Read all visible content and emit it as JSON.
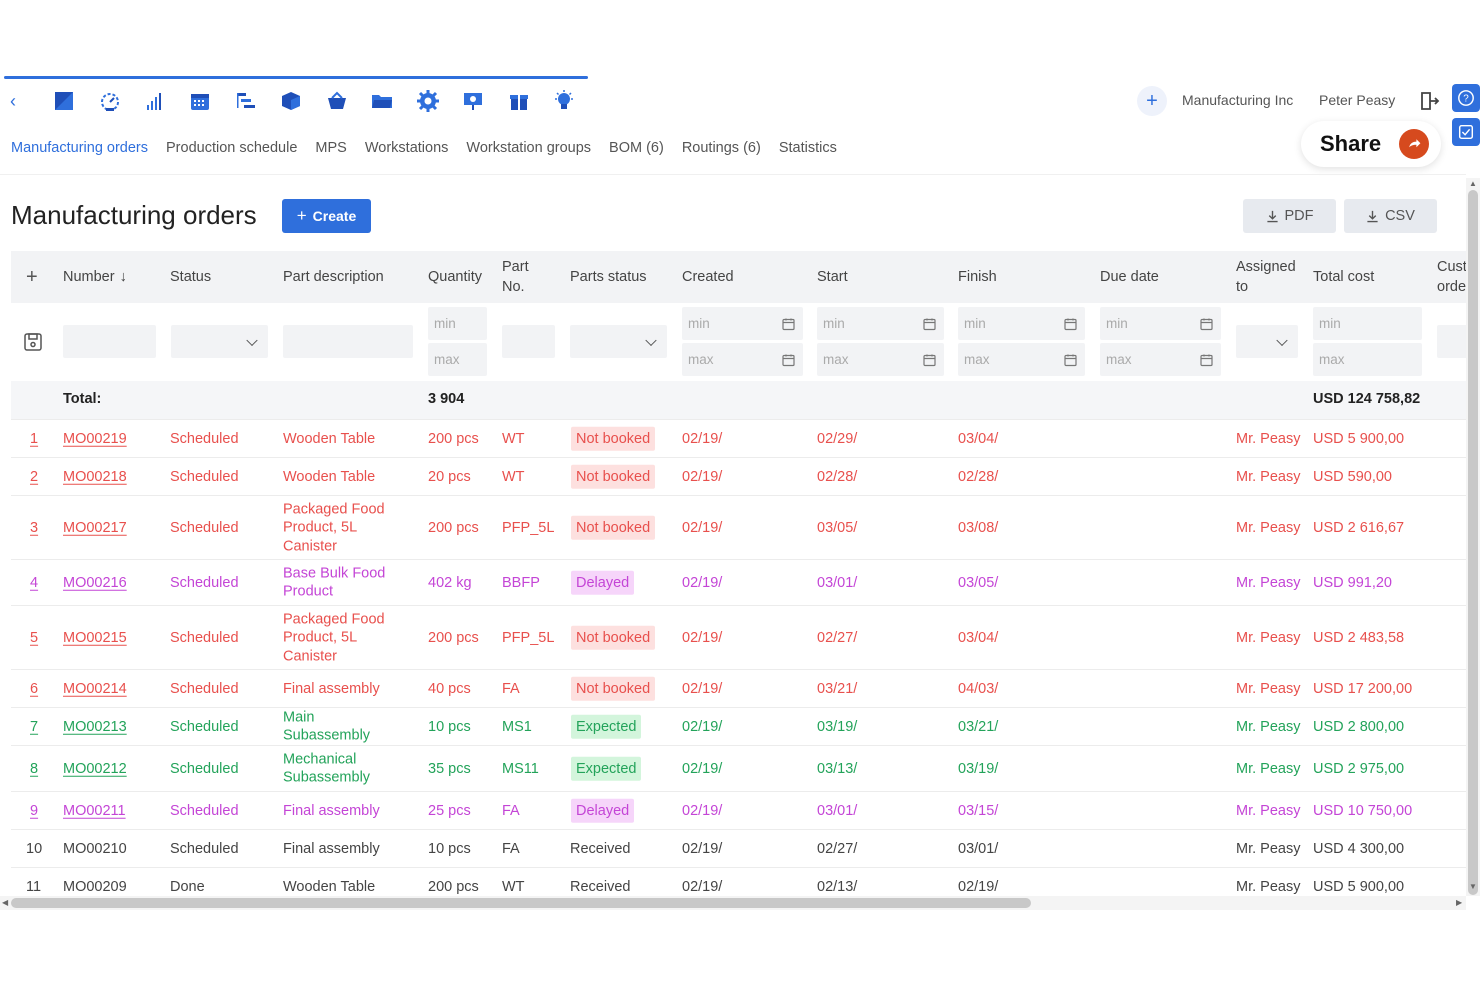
{
  "toolbar": {
    "icons": [
      "dashboard-icon",
      "sales-icon",
      "stock-icon",
      "calendar-icon",
      "production-icon",
      "items-icon",
      "purchasing-icon",
      "folder-icon",
      "settings-icon",
      "presentation-icon",
      "gift-icon",
      "idea-icon"
    ]
  },
  "account": {
    "company": "Manufacturing Inc",
    "user": "Peter Peasy"
  },
  "tabs": [
    "Manufacturing orders",
    "Production schedule",
    "MPS",
    "Workstations",
    "Workstation groups",
    "BOM (6)",
    "Routings (6)",
    "Statistics"
  ],
  "share_label": "Share",
  "page": {
    "title": "Manufacturing orders",
    "create_label": "Create",
    "pdf_label": "PDF",
    "csv_label": "CSV"
  },
  "columns": {
    "number": "Number",
    "status": "Status",
    "part_description": "Part description",
    "quantity": "Quantity",
    "part_no_1": "Part",
    "part_no_2": "No.",
    "parts_status": "Parts status",
    "created": "Created",
    "start": "Start",
    "finish": "Finish",
    "due_date": "Due date",
    "assigned_1": "Assigned",
    "assigned_2": "to",
    "total_cost": "Total cost",
    "customer_1": "Cust",
    "customer_2": "orde"
  },
  "filters": {
    "min": "min",
    "max": "max"
  },
  "totals": {
    "label": "Total:",
    "quantity": "3 904",
    "cost": "USD 124 758,82"
  },
  "rows": [
    {
      "idx": "1",
      "number": "MO00219",
      "status": "Scheduled",
      "desc": "Wooden Table",
      "qty": "200 pcs",
      "part": "WT",
      "parts": "Not booked",
      "created": "02/19/",
      "start": "02/29/",
      "finish": "03/04/",
      "assigned": "Mr. Peasy",
      "cost": "USD 5 900,00",
      "tone": "red"
    },
    {
      "idx": "2",
      "number": "MO00218",
      "status": "Scheduled",
      "desc": "Wooden Table",
      "qty": "20 pcs",
      "part": "WT",
      "parts": "Not booked",
      "created": "02/19/",
      "start": "02/28/",
      "finish": "02/28/",
      "assigned": "Mr. Peasy",
      "cost": "USD 590,00",
      "tone": "red"
    },
    {
      "idx": "3",
      "number": "MO00217",
      "status": "Scheduled",
      "desc": "Packaged Food Product, 5L Canister",
      "qty": "200 pcs",
      "part": "PFP_5L",
      "parts": "Not booked",
      "created": "02/19/",
      "start": "03/05/",
      "finish": "03/08/",
      "assigned": "Mr. Peasy",
      "cost": "USD 2 616,67",
      "tone": "red"
    },
    {
      "idx": "4",
      "number": "MO00216",
      "status": "Scheduled",
      "desc": "Base Bulk Food Product",
      "qty": "402 kg",
      "part": "BBFP",
      "parts": "Delayed",
      "created": "02/19/",
      "start": "03/01/",
      "finish": "03/05/",
      "assigned": "Mr. Peasy",
      "cost": "USD 991,20",
      "tone": "purple"
    },
    {
      "idx": "5",
      "number": "MO00215",
      "status": "Scheduled",
      "desc": "Packaged Food Product, 5L Canister",
      "qty": "200 pcs",
      "part": "PFP_5L",
      "parts": "Not booked",
      "created": "02/19/",
      "start": "02/27/",
      "finish": "03/04/",
      "assigned": "Mr. Peasy",
      "cost": "USD 2 483,58",
      "tone": "red"
    },
    {
      "idx": "6",
      "number": "MO00214",
      "status": "Scheduled",
      "desc": "Final assembly",
      "qty": "40 pcs",
      "part": "FA",
      "parts": "Not booked",
      "created": "02/19/",
      "start": "03/21/",
      "finish": "04/03/",
      "assigned": "Mr. Peasy",
      "cost": "USD 17 200,00",
      "tone": "red"
    },
    {
      "idx": "7",
      "number": "MO00213",
      "status": "Scheduled",
      "desc": "Main Subassembly",
      "qty": "10 pcs",
      "part": "MS1",
      "parts": "Expected",
      "created": "02/19/",
      "start": "03/19/",
      "finish": "03/21/",
      "assigned": "Mr. Peasy",
      "cost": "USD 2 800,00",
      "tone": "green"
    },
    {
      "idx": "8",
      "number": "MO00212",
      "status": "Scheduled",
      "desc": "Mechanical Subassembly",
      "qty": "35 pcs",
      "part": "MS11",
      "parts": "Expected",
      "created": "02/19/",
      "start": "03/13/",
      "finish": "03/19/",
      "assigned": "Mr. Peasy",
      "cost": "USD 2 975,00",
      "tone": "green"
    },
    {
      "idx": "9",
      "number": "MO00211",
      "status": "Scheduled",
      "desc": "Final assembly",
      "qty": "25 pcs",
      "part": "FA",
      "parts": "Delayed",
      "created": "02/19/",
      "start": "03/01/",
      "finish": "03/15/",
      "assigned": "Mr. Peasy",
      "cost": "USD 10 750,00",
      "tone": "purple"
    },
    {
      "idx": "10",
      "number": "MO00210",
      "status": "Scheduled",
      "desc": "Final assembly",
      "qty": "10 pcs",
      "part": "FA",
      "parts": "Received",
      "created": "02/19/",
      "start": "02/27/",
      "finish": "03/01/",
      "assigned": "Mr. Peasy",
      "cost": "USD 4 300,00",
      "tone": "gray"
    },
    {
      "idx": "11",
      "number": "MO00209",
      "status": "Done",
      "desc": "Wooden Table",
      "qty": "200 pcs",
      "part": "WT",
      "parts": "Received",
      "created": "02/19/",
      "start": "02/13/",
      "finish": "02/19/",
      "assigned": "Mr. Peasy",
      "cost": "USD 5 900,00",
      "tone": "gray"
    }
  ],
  "colors": {
    "accent": "#2f6fdc",
    "red": "#e8504d",
    "red_badge": "#fde0df",
    "purple": "#c445d6",
    "purple_badge": "#f6d5fa",
    "green": "#23a35a",
    "green_badge": "#d3f5dc",
    "gray": "#444444"
  }
}
